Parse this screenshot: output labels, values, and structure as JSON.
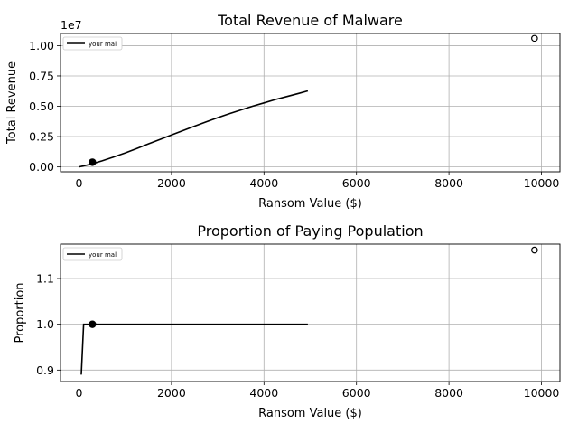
{
  "chart_data": [
    {
      "type": "line",
      "title": "Total Revenue of Malware",
      "xlabel": "Ransom Value ($)",
      "ylabel": "Total Revenue",
      "offset_label": "1e7",
      "xlim": [
        -400,
        10400
      ],
      "ylim": [
        -400000,
        11000000
      ],
      "xticks": [
        0,
        2000,
        4000,
        6000,
        8000,
        10000
      ],
      "xtick_labels": [
        "0",
        "2000",
        "4000",
        "6000",
        "8000",
        "10000"
      ],
      "yticks": [
        0,
        2500000,
        5000000,
        7500000,
        10000000
      ],
      "ytick_labels": [
        "0.00",
        "0.25",
        "0.50",
        "0.75",
        "1.00"
      ],
      "grid": true,
      "legend": {
        "position": "upper left",
        "entries": [
          "your mal"
        ]
      },
      "series": [
        {
          "name": "your mal",
          "color": "#000000",
          "x": [
            0,
            250,
            500,
            750,
            1000,
            1250,
            1500,
            1750,
            2000,
            2250,
            2500,
            2750,
            3000,
            3250,
            3500,
            3750,
            4000,
            4250,
            4500,
            4750,
            4950
          ],
          "y": [
            0,
            220000,
            500000,
            820000,
            1160000,
            1520000,
            1900000,
            2270000,
            2640000,
            3000000,
            3360000,
            3720000,
            4060000,
            4390000,
            4700000,
            5000000,
            5280000,
            5560000,
            5810000,
            6060000,
            6270000
          ]
        }
      ],
      "markers": [
        {
          "x": 290,
          "y": 390000,
          "style": "filled-circle",
          "color": "#000000"
        },
        {
          "x": 9850,
          "y": 10600000,
          "style": "open-circle",
          "color": "#000000"
        }
      ]
    },
    {
      "type": "line",
      "title": "Proportion of Paying Population",
      "xlabel": "Ransom Value ($)",
      "ylabel": "Proportion",
      "xlim": [
        -400,
        10400
      ],
      "ylim": [
        0.875,
        1.175
      ],
      "xticks": [
        0,
        2000,
        4000,
        6000,
        8000,
        10000
      ],
      "xtick_labels": [
        "0",
        "2000",
        "4000",
        "6000",
        "8000",
        "10000"
      ],
      "yticks": [
        0.9,
        1.0,
        1.1
      ],
      "ytick_labels": [
        "0.9",
        "1.0",
        "1.1"
      ],
      "grid": true,
      "legend": {
        "position": "upper left",
        "entries": [
          "your mal"
        ]
      },
      "series": [
        {
          "name": "your mal",
          "color": "#000000",
          "x": [
            50,
            100,
            150,
            4950
          ],
          "y": [
            0.89,
            1.0,
            1.0,
            1.0
          ]
        }
      ],
      "markers": [
        {
          "x": 290,
          "y": 1.0,
          "style": "filled-circle",
          "color": "#000000"
        },
        {
          "x": 9850,
          "y": 1.162,
          "style": "open-circle",
          "color": "#000000"
        }
      ]
    }
  ]
}
